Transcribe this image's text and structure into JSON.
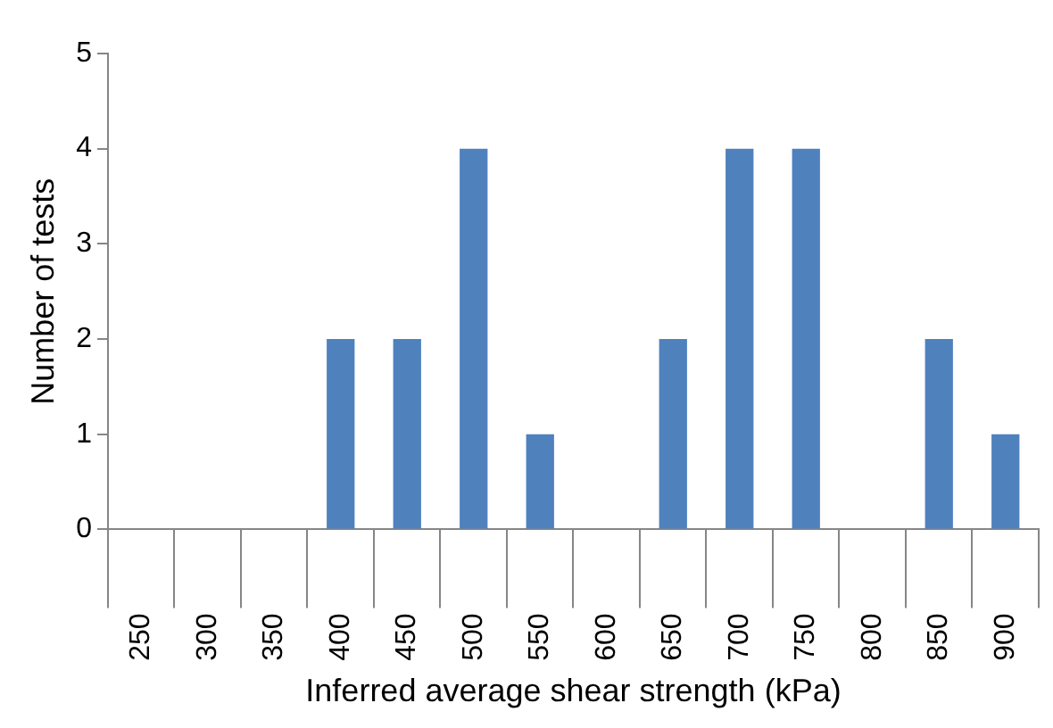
{
  "chart_data": {
    "type": "bar",
    "xlabel": "Inferred average shear strength (kPa)",
    "ylabel": "Number of tests",
    "categories": [
      "250",
      "300",
      "350",
      "400",
      "450",
      "500",
      "550",
      "600",
      "650",
      "700",
      "750",
      "800",
      "850",
      "900"
    ],
    "values": [
      0,
      0,
      0,
      2,
      2,
      4,
      1,
      0,
      2,
      4,
      4,
      0,
      2,
      1
    ],
    "color": "#4f81bd",
    "ylim": [
      0,
      5
    ],
    "yticks": [
      0,
      1,
      2,
      3,
      4,
      5
    ],
    "grid": false,
    "legend": false
  }
}
